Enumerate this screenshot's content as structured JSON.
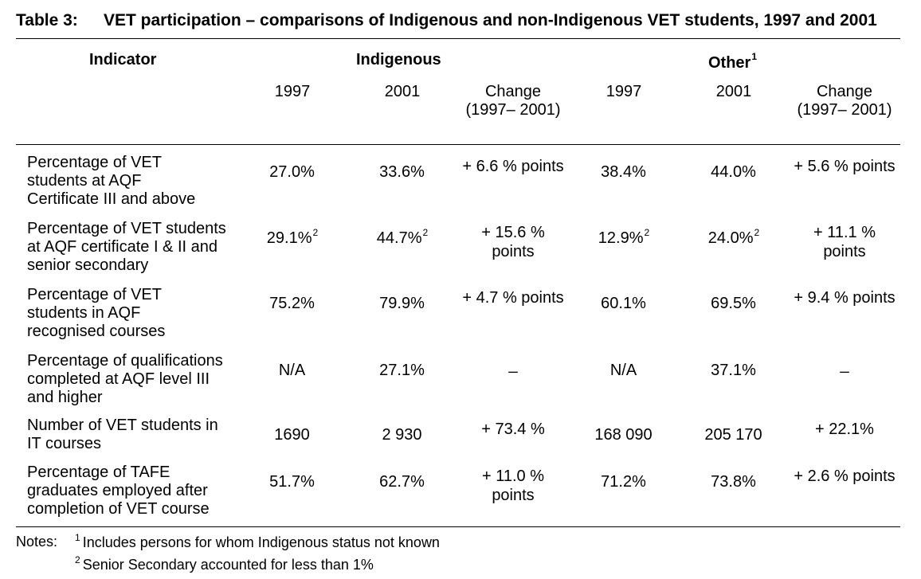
{
  "title": {
    "label": "Table 3:",
    "text": "VET participation – comparisons of Indigenous and non-Indigenous VET students, 1997 and 2001"
  },
  "header": {
    "indicator": "Indicator",
    "group_indigenous": "Indigenous",
    "group_other": "Other",
    "group_other_note": "1",
    "col_1997": "1997",
    "col_2001": "2001",
    "col_change": "Change (1997– 2001)"
  },
  "rows": [
    {
      "indicator": "Percentage of VET students at AQF Certificate III and above",
      "ind_1997": "27.0%",
      "ind_1997_note": "",
      "ind_2001": "33.6%",
      "ind_2001_note": "",
      "ind_change": "+ 6.6 % points",
      "oth_1997": "38.4%",
      "oth_1997_note": "",
      "oth_2001": "44.0%",
      "oth_2001_note": "",
      "oth_change": "+ 5.6 % points"
    },
    {
      "indicator": "Percentage of VET students at AQF certificate I & II and senior secondary",
      "ind_1997": "29.1%",
      "ind_1997_note": "2",
      "ind_2001": "44.7%",
      "ind_2001_note": "2",
      "ind_change": "+ 15.6 % points",
      "oth_1997": "12.9%",
      "oth_1997_note": "2",
      "oth_2001": "24.0%",
      "oth_2001_note": "2",
      "oth_change": "+ 11.1 % points"
    },
    {
      "indicator": "Percentage of VET students in AQF recognised courses",
      "ind_1997": "75.2%",
      "ind_1997_note": "",
      "ind_2001": "79.9%",
      "ind_2001_note": "",
      "ind_change": "+ 4.7 % points",
      "oth_1997": "60.1%",
      "oth_1997_note": "",
      "oth_2001": "69.5%",
      "oth_2001_note": "",
      "oth_change": "+ 9.4 % points"
    },
    {
      "indicator": "Percentage of qualifications completed at AQF level III and higher",
      "ind_1997": "N/A",
      "ind_1997_note": "",
      "ind_2001": "27.1%",
      "ind_2001_note": "",
      "ind_change": "_",
      "oth_1997": "N/A",
      "oth_1997_note": "",
      "oth_2001": "37.1%",
      "oth_2001_note": "",
      "oth_change": "_"
    },
    {
      "indicator": "Number of VET students in IT courses",
      "ind_1997": "1690",
      "ind_1997_note": "",
      "ind_2001": "2 930",
      "ind_2001_note": "",
      "ind_change": "+ 73.4 %",
      "oth_1997": "168 090",
      "oth_1997_note": "",
      "oth_2001": "205 170",
      "oth_2001_note": "",
      "oth_change": "+ 22.1%"
    },
    {
      "indicator": "Percentage of TAFE graduates employed after completion of VET course",
      "ind_1997": "51.7%",
      "ind_1997_note": "",
      "ind_2001": "62.7%",
      "ind_2001_note": "",
      "ind_change": "+ 11.0 % points",
      "oth_1997": "71.2%",
      "oth_1997_note": "",
      "oth_2001": "73.8%",
      "oth_2001_note": "",
      "oth_change": "+ 2.6 % points"
    }
  ],
  "notes": {
    "label": "Notes:",
    "items": [
      {
        "mark": "1",
        "text": "Includes persons for whom Indigenous status not known"
      },
      {
        "mark": "2",
        "text": "Senior Secondary accounted for less than 1%"
      }
    ]
  }
}
